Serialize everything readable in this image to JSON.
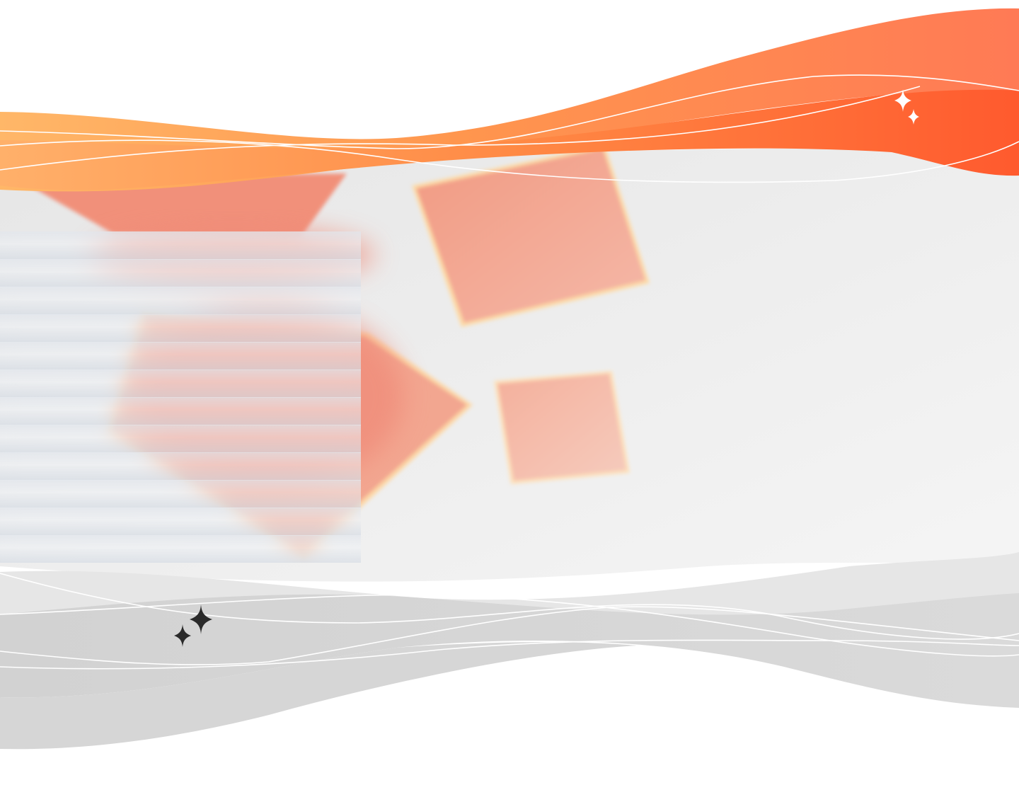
{
  "artwork": {
    "description_free": true,
    "colors": {
      "orange_light": "#FFB366",
      "orange_mid": "#FF8A4C",
      "orange_deep": "#FF5A2E",
      "salmon": "#F29A82",
      "salmon_soft": "#F6B8A6",
      "glow": "#FFD08A",
      "backdrop_grey": "#E8E8E8",
      "backdrop_light": "#F4F4F4",
      "wave_grey": "#D4D4D4",
      "wave_grey_dark": "#C9C9C9",
      "line_white": "#FFFFFF",
      "sparkle_dark": "#2A2A2A",
      "sparkle_light": "#FFFFFF"
    },
    "icons": [
      "sparkle-icon",
      "sparkle-icon",
      "sparkle-icon",
      "sparkle-icon"
    ]
  }
}
